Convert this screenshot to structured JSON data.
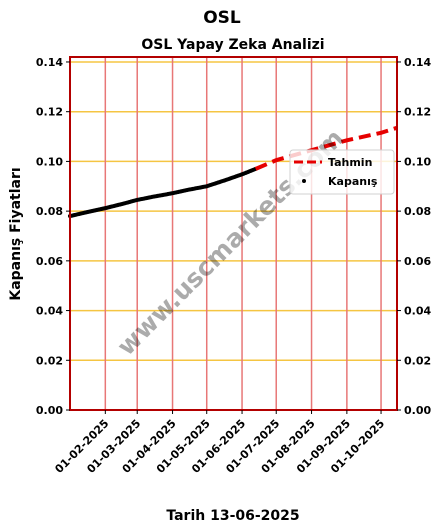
{
  "header": {
    "title": "OSL",
    "subtitle": "OSL Yapay Zeka Analizi"
  },
  "watermark": "www.uscmarkets.com",
  "colors": {
    "frame": "#b30000",
    "hgrid": "#f5c542",
    "vgrid": "#e87777",
    "kapanis": "#000000",
    "tahmin": "#e60000"
  },
  "chart_data": {
    "type": "line",
    "title": "OSL Yapay Zeka Analizi",
    "xlabel": "Tarih 13-06-2025",
    "ylabel": "Kapanış Fiyatları",
    "xlim": [
      "2025-01-01",
      "2025-10-15"
    ],
    "ylim": [
      0,
      0.142
    ],
    "x_ticks": [
      "2025-02-01",
      "2025-03-01",
      "2025-04-01",
      "2025-05-01",
      "2025-06-01",
      "2025-07-01",
      "2025-08-01",
      "2025-09-01",
      "2025-10-01"
    ],
    "x_tick_labels": [
      "01-02-2025",
      "01-03-2025",
      "01-04-2025",
      "01-05-2025",
      "01-06-2025",
      "01-07-2025",
      "01-08-2025",
      "01-09-2025",
      "01-10-2025"
    ],
    "y_ticks": [
      0.0,
      0.02,
      0.04,
      0.06,
      0.08,
      0.1,
      0.12,
      0.14
    ],
    "y_tick_labels": [
      "0.00",
      "0.02",
      "0.04",
      "0.06",
      "0.08",
      "0.10",
      "0.12",
      "0.14"
    ],
    "grid": true,
    "legend_position": "right",
    "series": [
      {
        "name": "Kapanış",
        "style": "points",
        "x": [
          "2025-01-01",
          "2025-01-15",
          "2025-02-01",
          "2025-02-15",
          "2025-03-01",
          "2025-03-15",
          "2025-04-01",
          "2025-04-15",
          "2025-05-01",
          "2025-05-15",
          "2025-06-01",
          "2025-06-13"
        ],
        "y": [
          0.078,
          0.0795,
          0.0812,
          0.0828,
          0.0845,
          0.0858,
          0.0872,
          0.0886,
          0.09,
          0.0921,
          0.0948,
          0.097
        ]
      },
      {
        "name": "Tahmin",
        "style": "dashed-line",
        "x": [
          "2025-06-13",
          "2025-07-01",
          "2025-08-01",
          "2025-09-01",
          "2025-10-01",
          "2025-10-15"
        ],
        "y": [
          0.097,
          0.1005,
          0.1045,
          0.1085,
          0.1115,
          0.1135
        ]
      }
    ]
  }
}
